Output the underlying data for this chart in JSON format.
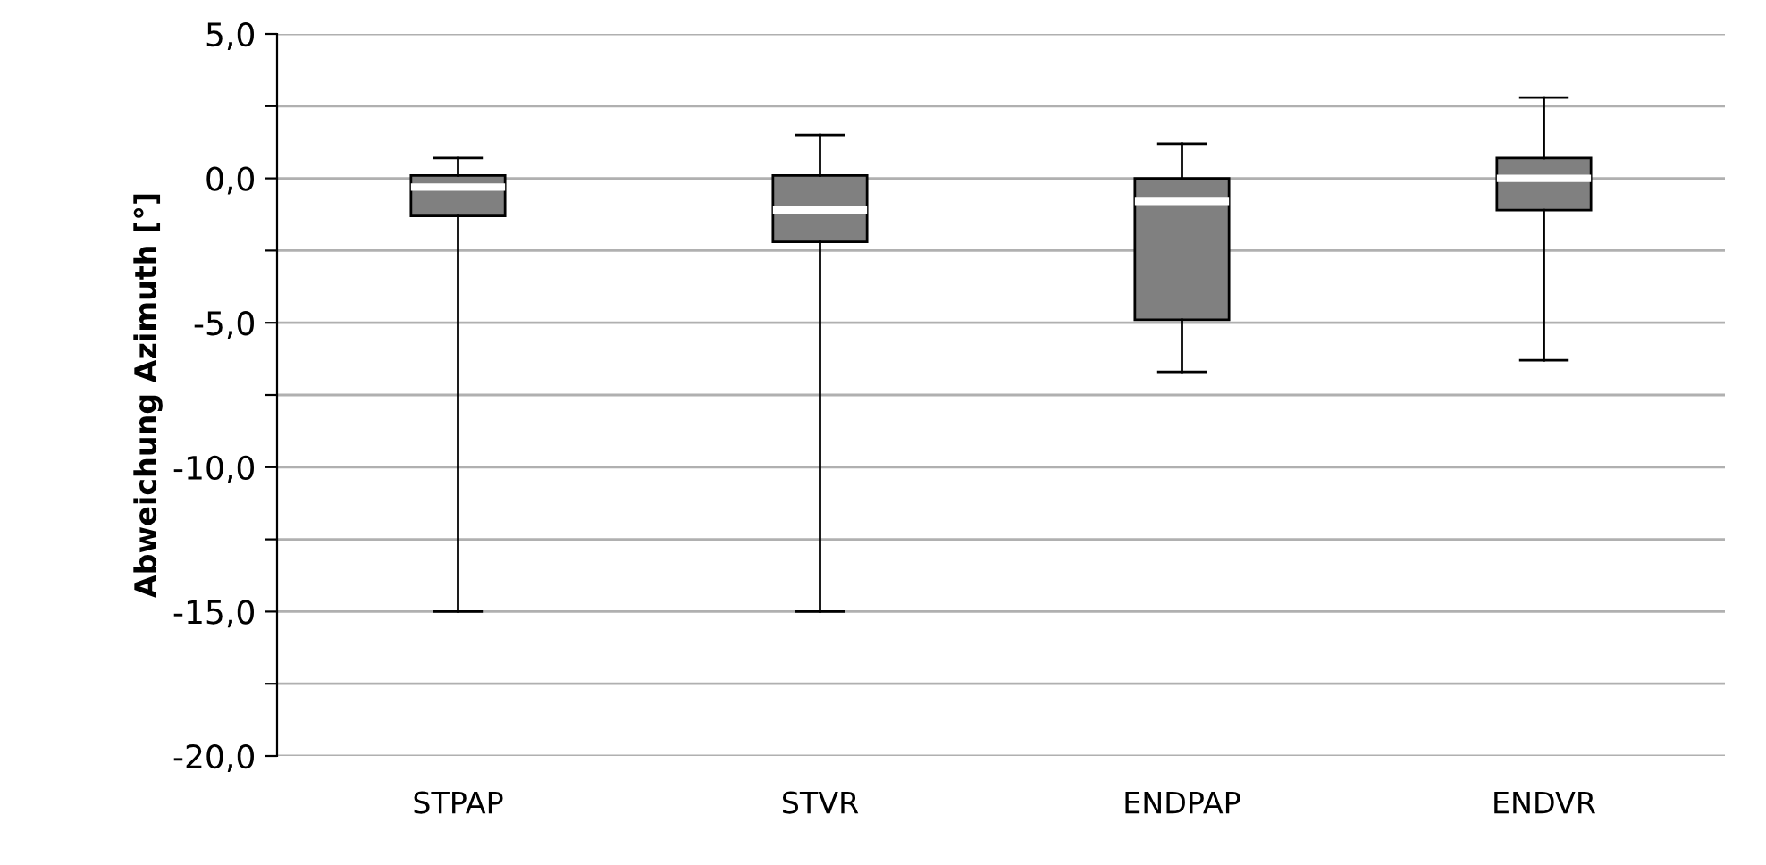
{
  "chart_data": {
    "type": "box",
    "ylabel": "Abweichung Azimuth [°]",
    "categories": [
      "STPAP",
      "STVR",
      "ENDPAP",
      "ENDVR"
    ],
    "boxes": [
      {
        "low": -15.0,
        "q1": -1.3,
        "median": -0.3,
        "q3": 0.1,
        "high": 0.7
      },
      {
        "low": -15.0,
        "q1": -2.2,
        "median": -1.1,
        "q3": 0.1,
        "high": 1.5
      },
      {
        "low": -6.7,
        "q1": -4.9,
        "median": -0.8,
        "q3": 0.0,
        "high": 1.2
      },
      {
        "low": -6.3,
        "q1": -1.1,
        "median": 0.0,
        "q3": 0.7,
        "high": 2.8
      }
    ],
    "color": "#808080",
    "ylim": [
      -20,
      5
    ],
    "yticks": [
      {
        "value": -20,
        "label": "-20,0"
      },
      {
        "value": -17.5,
        "label": null
      },
      {
        "value": -15,
        "label": "-15,0"
      },
      {
        "value": -12.5,
        "label": null
      },
      {
        "value": -10,
        "label": "-10,0"
      },
      {
        "value": -7.5,
        "label": null
      },
      {
        "value": -5,
        "label": "-5,0"
      },
      {
        "value": -2.5,
        "label": null
      },
      {
        "value": 0,
        "label": "0,0"
      },
      {
        "value": 2.5,
        "label": null
      },
      {
        "value": 5,
        "label": "5,0"
      }
    ],
    "grid": "y"
  }
}
